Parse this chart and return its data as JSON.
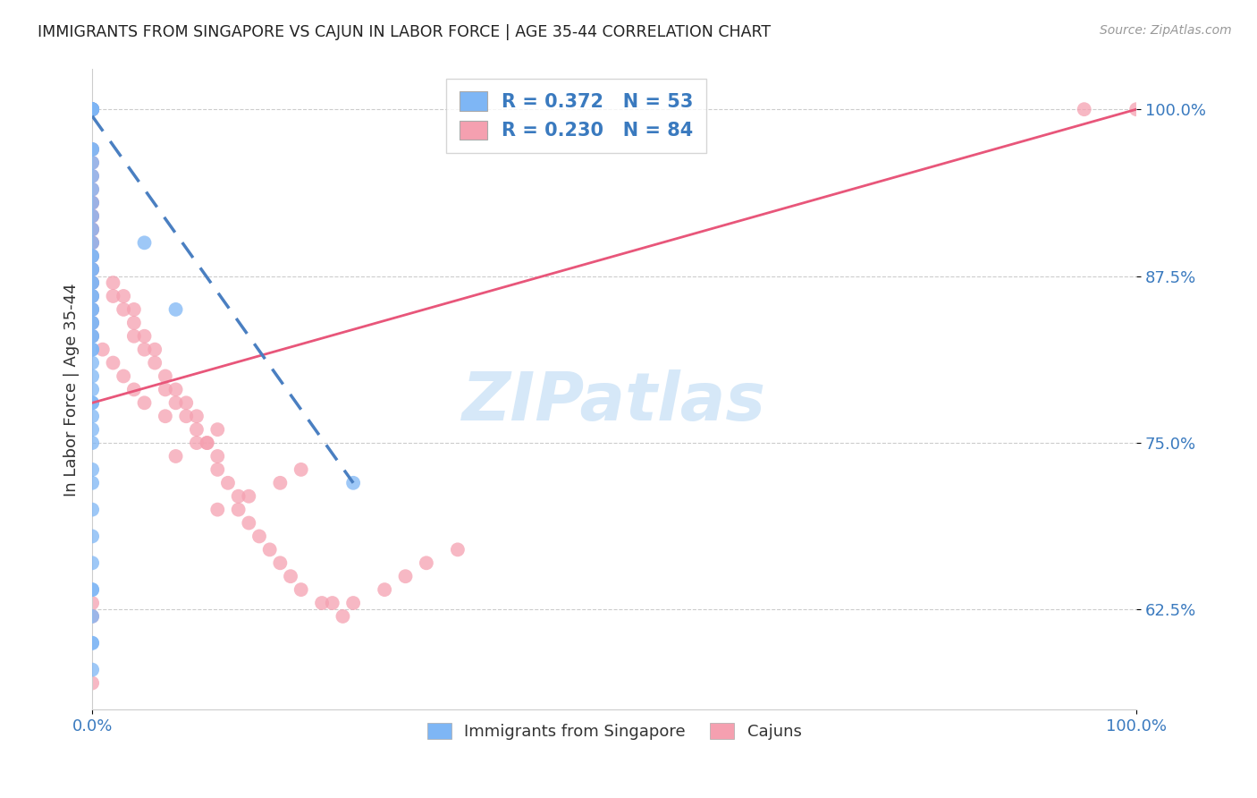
{
  "title": "IMMIGRANTS FROM SINGAPORE VS CAJUN IN LABOR FORCE | AGE 35-44 CORRELATION CHART",
  "source": "Source: ZipAtlas.com",
  "ylabel": "In Labor Force | Age 35-44",
  "ytick_labels": [
    "100.0%",
    "87.5%",
    "75.0%",
    "62.5%"
  ],
  "ytick_values": [
    1.0,
    0.875,
    0.75,
    0.625
  ],
  "xlim": [
    0.0,
    1.0
  ],
  "ylim": [
    0.55,
    1.03
  ],
  "watermark": "ZIPatlas",
  "color_singapore": "#7eb6f5",
  "color_cajun": "#f5a0b0",
  "trendline_color_singapore": "#4a7fc1",
  "trendline_color_cajun": "#e8567a",
  "background_color": "#ffffff",
  "singapore_x": [
    0.0,
    0.0,
    0.0,
    0.0,
    0.0,
    0.0,
    0.0,
    0.0,
    0.0,
    0.0,
    0.0,
    0.0,
    0.0,
    0.0,
    0.0,
    0.0,
    0.0,
    0.0,
    0.0,
    0.0,
    0.0,
    0.0,
    0.0,
    0.0,
    0.0,
    0.0,
    0.0,
    0.0,
    0.0,
    0.0,
    0.0,
    0.0,
    0.0,
    0.0,
    0.0,
    0.0,
    0.0,
    0.0,
    0.0,
    0.0,
    0.0,
    0.0,
    0.0,
    0.0,
    0.0,
    0.0,
    0.0,
    0.0,
    0.0,
    0.0,
    0.05,
    0.08,
    0.25
  ],
  "singapore_y": [
    1.0,
    1.0,
    1.0,
    1.0,
    1.0,
    1.0,
    0.97,
    0.97,
    0.96,
    0.95,
    0.94,
    0.93,
    0.92,
    0.91,
    0.9,
    0.89,
    0.89,
    0.88,
    0.88,
    0.87,
    0.87,
    0.86,
    0.86,
    0.85,
    0.85,
    0.84,
    0.84,
    0.83,
    0.83,
    0.82,
    0.82,
    0.81,
    0.8,
    0.79,
    0.78,
    0.78,
    0.77,
    0.76,
    0.75,
    0.73,
    0.72,
    0.7,
    0.68,
    0.66,
    0.64,
    0.62,
    0.6,
    0.58,
    0.6,
    0.64,
    0.9,
    0.85,
    0.72
  ],
  "cajun_x": [
    0.0,
    0.0,
    0.0,
    0.0,
    0.0,
    0.0,
    0.0,
    0.0,
    0.0,
    0.0,
    0.0,
    0.0,
    0.0,
    0.0,
    0.0,
    0.02,
    0.02,
    0.03,
    0.03,
    0.04,
    0.04,
    0.04,
    0.05,
    0.05,
    0.06,
    0.06,
    0.07,
    0.07,
    0.08,
    0.08,
    0.09,
    0.09,
    0.1,
    0.1,
    0.11,
    0.11,
    0.12,
    0.12,
    0.13,
    0.14,
    0.14,
    0.15,
    0.16,
    0.17,
    0.18,
    0.19,
    0.2,
    0.22,
    0.23,
    0.24,
    0.25,
    0.28,
    0.3,
    0.32,
    0.35,
    0.12,
    0.15,
    0.18,
    0.2,
    0.08,
    0.1,
    0.12,
    0.07,
    0.05,
    0.04,
    0.03,
    0.02,
    0.01,
    0.0,
    0.0,
    0.0,
    0.0,
    0.0,
    0.0,
    0.0,
    0.0,
    0.0,
    0.0,
    0.0,
    0.0,
    0.0,
    0.0,
    1.0,
    0.95
  ],
  "cajun_y": [
    1.0,
    1.0,
    1.0,
    1.0,
    1.0,
    0.97,
    0.96,
    0.95,
    0.94,
    0.93,
    0.92,
    0.91,
    0.9,
    0.88,
    0.87,
    0.87,
    0.86,
    0.86,
    0.85,
    0.85,
    0.84,
    0.83,
    0.83,
    0.82,
    0.82,
    0.81,
    0.8,
    0.79,
    0.79,
    0.78,
    0.78,
    0.77,
    0.77,
    0.76,
    0.75,
    0.75,
    0.74,
    0.73,
    0.72,
    0.71,
    0.7,
    0.69,
    0.68,
    0.67,
    0.66,
    0.65,
    0.64,
    0.63,
    0.63,
    0.62,
    0.63,
    0.64,
    0.65,
    0.66,
    0.67,
    0.7,
    0.71,
    0.72,
    0.73,
    0.74,
    0.75,
    0.76,
    0.77,
    0.78,
    0.79,
    0.8,
    0.81,
    0.82,
    0.83,
    0.84,
    0.85,
    0.86,
    0.87,
    0.88,
    0.89,
    0.9,
    0.91,
    0.92,
    0.93,
    0.62,
    0.63,
    0.57,
    1.0,
    1.0
  ],
  "sg_trend_x": [
    0.0,
    0.25
  ],
  "sg_trend_y": [
    0.995,
    0.72
  ],
  "cajun_trend_x": [
    0.0,
    1.0
  ],
  "cajun_trend_y": [
    0.78,
    1.0
  ]
}
